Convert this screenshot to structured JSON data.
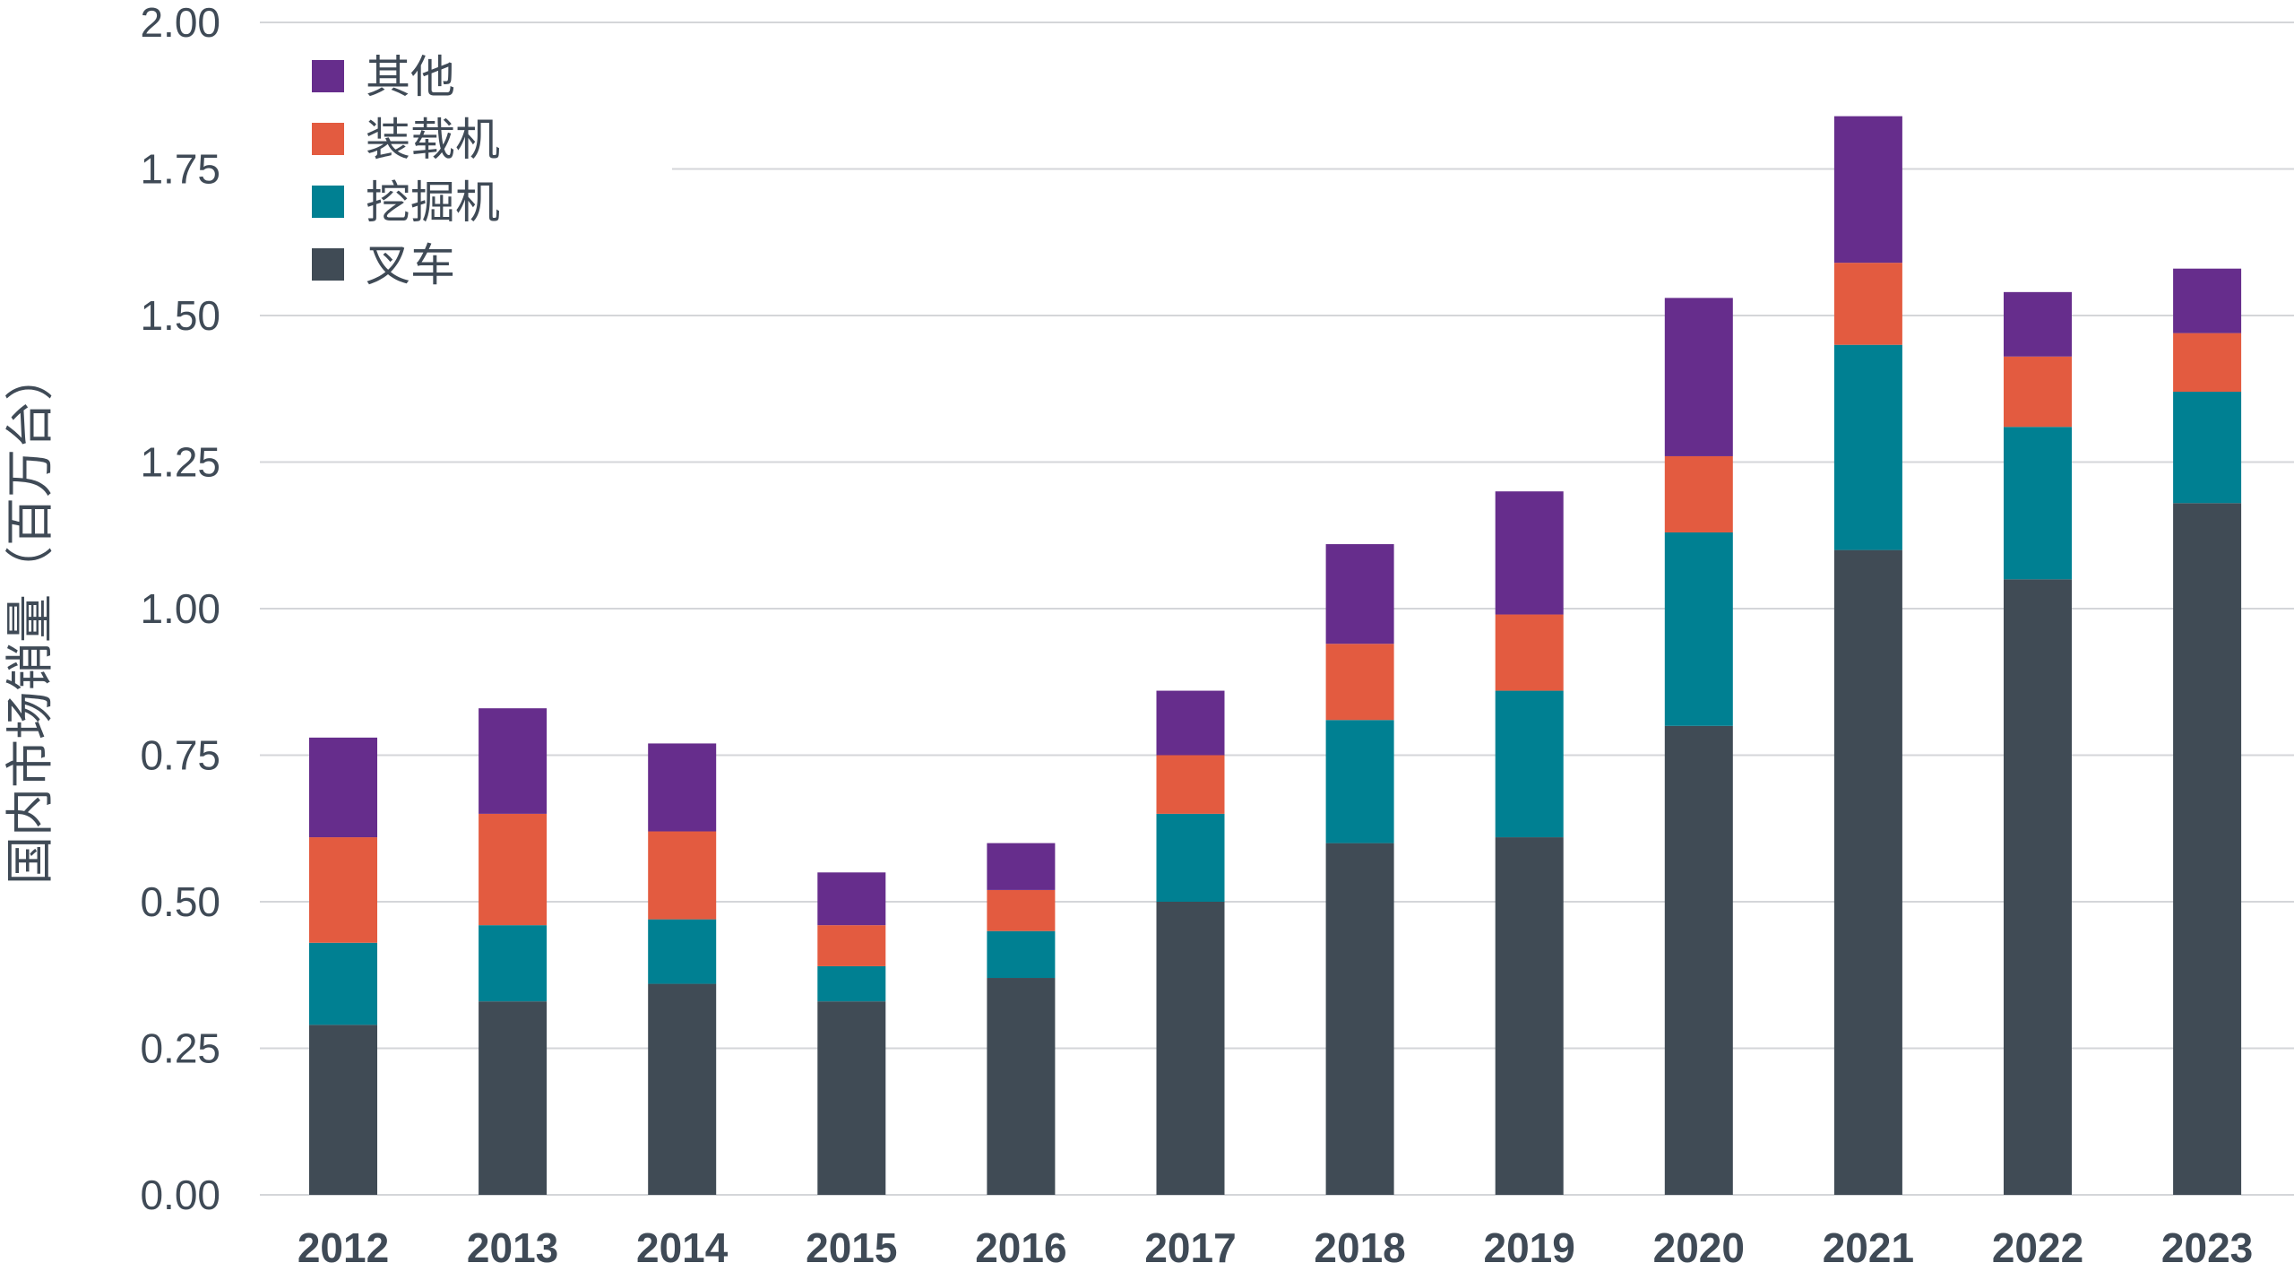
{
  "chart_data": {
    "type": "bar",
    "stacked": true,
    "categories": [
      "2012",
      "2013",
      "2014",
      "2015",
      "2016",
      "2017",
      "2018",
      "2019",
      "2020",
      "2021",
      "2022",
      "2023"
    ],
    "series": [
      {
        "name": "叉车",
        "color": "#404b55",
        "values": [
          0.29,
          0.33,
          0.36,
          0.33,
          0.37,
          0.5,
          0.6,
          0.61,
          0.8,
          1.1,
          1.05,
          1.18
        ]
      },
      {
        "name": "挖掘机",
        "color": "#008092",
        "values": [
          0.14,
          0.13,
          0.11,
          0.06,
          0.08,
          0.15,
          0.21,
          0.25,
          0.33,
          0.35,
          0.26,
          0.19
        ]
      },
      {
        "name": "装载机",
        "color": "#e35b40",
        "values": [
          0.18,
          0.19,
          0.15,
          0.07,
          0.07,
          0.1,
          0.13,
          0.13,
          0.13,
          0.14,
          0.12,
          0.1
        ]
      },
      {
        "name": "其他",
        "color": "#662d8c",
        "values": [
          0.17,
          0.18,
          0.15,
          0.09,
          0.08,
          0.11,
          0.17,
          0.21,
          0.27,
          0.25,
          0.11,
          0.11
        ]
      }
    ],
    "ylabel": "国内市场销量（百万台）",
    "xlabel": "",
    "ylim": [
      0,
      2.0
    ],
    "yticks": [
      "0.00",
      "0.25",
      "0.50",
      "0.75",
      "1.00",
      "1.25",
      "1.50",
      "1.75",
      "2.00"
    ],
    "grid": true,
    "legend_position": "top-left",
    "legend_order": [
      "其他",
      "装载机",
      "挖掘机",
      "叉车"
    ]
  }
}
